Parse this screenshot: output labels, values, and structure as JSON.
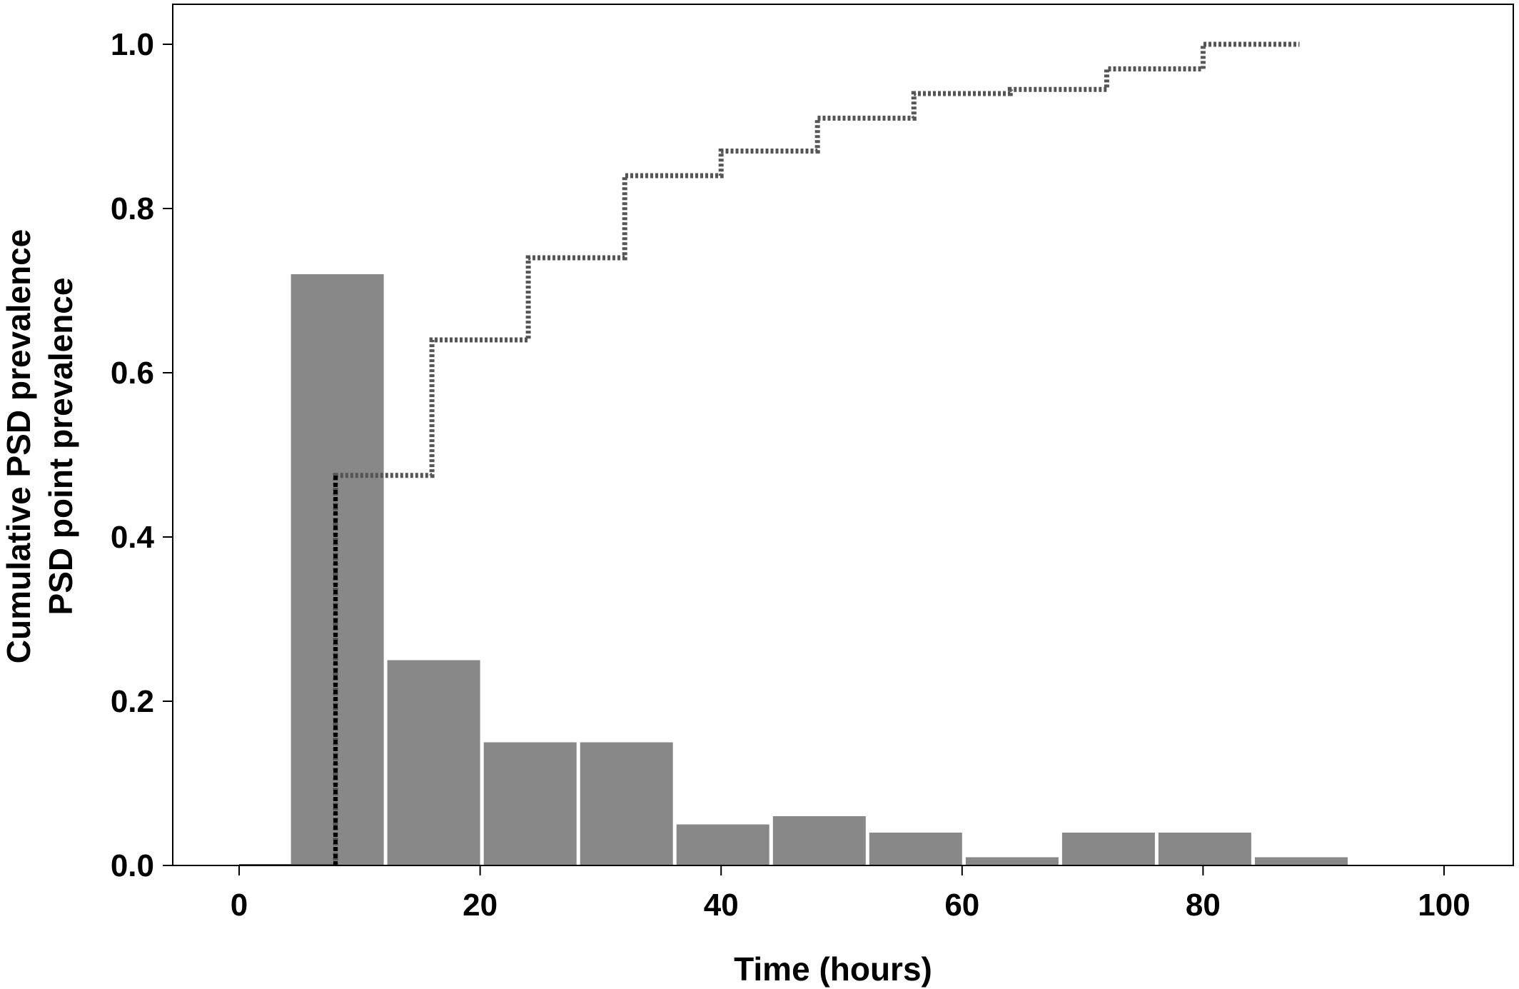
{
  "chart_data": {
    "type": "bar",
    "xlabel": "Time (hours)",
    "ylabel_lines": [
      "Cumulative PSD prevalence",
      "PSD point prevalence"
    ],
    "xlim": [
      -5,
      105
    ],
    "ylim": [
      0,
      1.05
    ],
    "xticks": [
      0,
      20,
      40,
      60,
      80,
      100
    ],
    "yticks": [
      0.0,
      0.2,
      0.4,
      0.6,
      0.8,
      1.0
    ],
    "ytick_labels": [
      "0.0",
      "0.2",
      "0.4",
      "0.6",
      "0.8",
      "1.0"
    ],
    "grid": false,
    "bar_color": "#888888",
    "line_color": "#555555",
    "bars": [
      {
        "x0": 4.3,
        "x1": 12.0,
        "value": 0.72
      },
      {
        "x0": 12.3,
        "x1": 20.0,
        "value": 0.25
      },
      {
        "x0": 20.3,
        "x1": 28.0,
        "value": 0.15
      },
      {
        "x0": 28.3,
        "x1": 36.0,
        "value": 0.15
      },
      {
        "x0": 36.3,
        "x1": 44.0,
        "value": 0.05
      },
      {
        "x0": 44.3,
        "x1": 52.0,
        "value": 0.06
      },
      {
        "x0": 52.3,
        "x1": 60.0,
        "value": 0.04
      },
      {
        "x0": 60.3,
        "x1": 68.0,
        "value": 0.01
      },
      {
        "x0": 68.3,
        "x1": 76.0,
        "value": 0.04
      },
      {
        "x0": 76.3,
        "x1": 84.0,
        "value": 0.04
      },
      {
        "x0": 84.3,
        "x1": 92.0,
        "value": 0.01
      }
    ],
    "cumulative_step": {
      "x": [
        0,
        8,
        16,
        24,
        32,
        40,
        48,
        56,
        64,
        72,
        80,
        88
      ],
      "y": [
        0.0,
        0.475,
        0.64,
        0.74,
        0.84,
        0.87,
        0.91,
        0.94,
        0.945,
        0.97,
        1.0,
        1.0
      ]
    }
  }
}
